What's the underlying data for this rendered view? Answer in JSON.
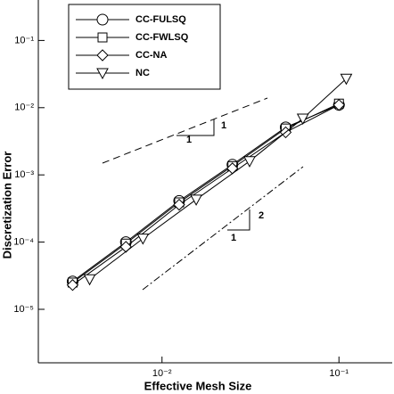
{
  "chart_data": {
    "type": "line",
    "log_x": true,
    "log_y": true,
    "xlabel": "Effective Mesh Size",
    "ylabel": "Discretization Error",
    "xlim": [
      0.002,
      0.2
    ],
    "ylim": [
      1.6e-06,
      0.4
    ],
    "xticks": [
      {
        "value": 0.01,
        "label": "10⁻²"
      },
      {
        "value": 0.1,
        "label": "10⁻¹"
      }
    ],
    "yticks": [
      {
        "value": 1e-05,
        "label": "10⁻⁵"
      },
      {
        "value": 0.0001,
        "label": "10⁻⁴"
      },
      {
        "value": 0.001,
        "label": "10⁻³"
      },
      {
        "value": 0.01,
        "label": "10⁻²"
      },
      {
        "value": 0.1,
        "label": "10⁻¹"
      }
    ],
    "series": [
      {
        "name": "CC-FULSQ",
        "color": "#000000",
        "marker": "circle",
        "x": [
          0.003125,
          0.00625,
          0.0125,
          0.025,
          0.05,
          0.1
        ],
        "values": [
          2.6e-05,
          0.0001,
          0.00041,
          0.00142,
          0.0051,
          0.011
        ]
      },
      {
        "name": "CC-FWLSQ",
        "color": "#000000",
        "marker": "square",
        "x": [
          0.003125,
          0.00625,
          0.0125,
          0.025,
          0.05,
          0.1
        ],
        "values": [
          2.5e-05,
          9.5e-05,
          0.00039,
          0.00135,
          0.0049,
          0.0115
        ]
      },
      {
        "name": "CC-NA",
        "color": "#000000",
        "marker": "diamond",
        "x": [
          0.003125,
          0.00625,
          0.0125,
          0.025,
          0.05,
          0.1
        ],
        "values": [
          2.3e-05,
          8.5e-05,
          0.00036,
          0.00125,
          0.0043,
          0.011
        ]
      },
      {
        "name": "NC",
        "color": "#000000",
        "marker": "triangle-down",
        "x": [
          0.0039,
          0.0078,
          0.0156,
          0.03125,
          0.0625,
          0.11
        ],
        "values": [
          2.8e-05,
          0.000113,
          0.00043,
          0.0016,
          0.0069,
          0.027
        ]
      }
    ],
    "annotations": [
      {
        "text": "1"
      },
      {
        "text": "1"
      },
      {
        "text": "1"
      },
      {
        "text": "2"
      }
    ]
  }
}
